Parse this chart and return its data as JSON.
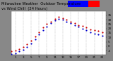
{
  "bg_color": "#888888",
  "plot_bg": "#ffffff",
  "grid_color": "#999999",
  "ylim": [
    -10,
    40
  ],
  "xlim": [
    0,
    24
  ],
  "x_ticks": [
    1,
    3,
    5,
    7,
    9,
    11,
    13,
    15,
    17,
    19,
    21,
    23
  ],
  "y_ticks": [
    -5,
    0,
    5,
    10,
    15,
    20,
    25,
    30,
    35
  ],
  "temp_x": [
    0,
    1,
    2,
    3,
    4,
    5,
    6,
    7,
    8,
    9,
    10,
    11,
    12,
    13,
    14,
    15,
    16,
    17,
    18,
    19,
    20,
    21,
    22,
    23
  ],
  "temp_y": [
    -6,
    -5,
    -3,
    -1,
    2,
    6,
    11,
    16,
    21,
    25,
    28,
    31,
    33,
    32,
    30,
    28,
    26,
    24,
    23,
    21,
    19,
    18,
    17,
    16
  ],
  "chill_x": [
    0,
    1,
    2,
    3,
    4,
    5,
    6,
    7,
    8,
    9,
    10,
    11,
    12,
    13,
    14,
    15,
    16,
    17,
    18,
    19,
    20,
    21,
    22,
    23
  ],
  "chill_y": [
    -9,
    -8,
    -6,
    -4,
    -1,
    3,
    8,
    13,
    18,
    22,
    26,
    29,
    31,
    30,
    28,
    26,
    24,
    22,
    20,
    18,
    16,
    14,
    13,
    12
  ],
  "temp_color": "#cc0000",
  "chill_color": "#0000cc",
  "dot_size": 2.5,
  "tick_fontsize": 3.0,
  "title_fontsize": 3.8,
  "title_text": "Milwaukee Weather  Outdoor Temperature",
  "title_text2": "vs Wind Chill",
  "title_text3": "(24 Hours)",
  "legend_blue": "#0000ff",
  "legend_red": "#ff0000",
  "title_bg": "#888888"
}
